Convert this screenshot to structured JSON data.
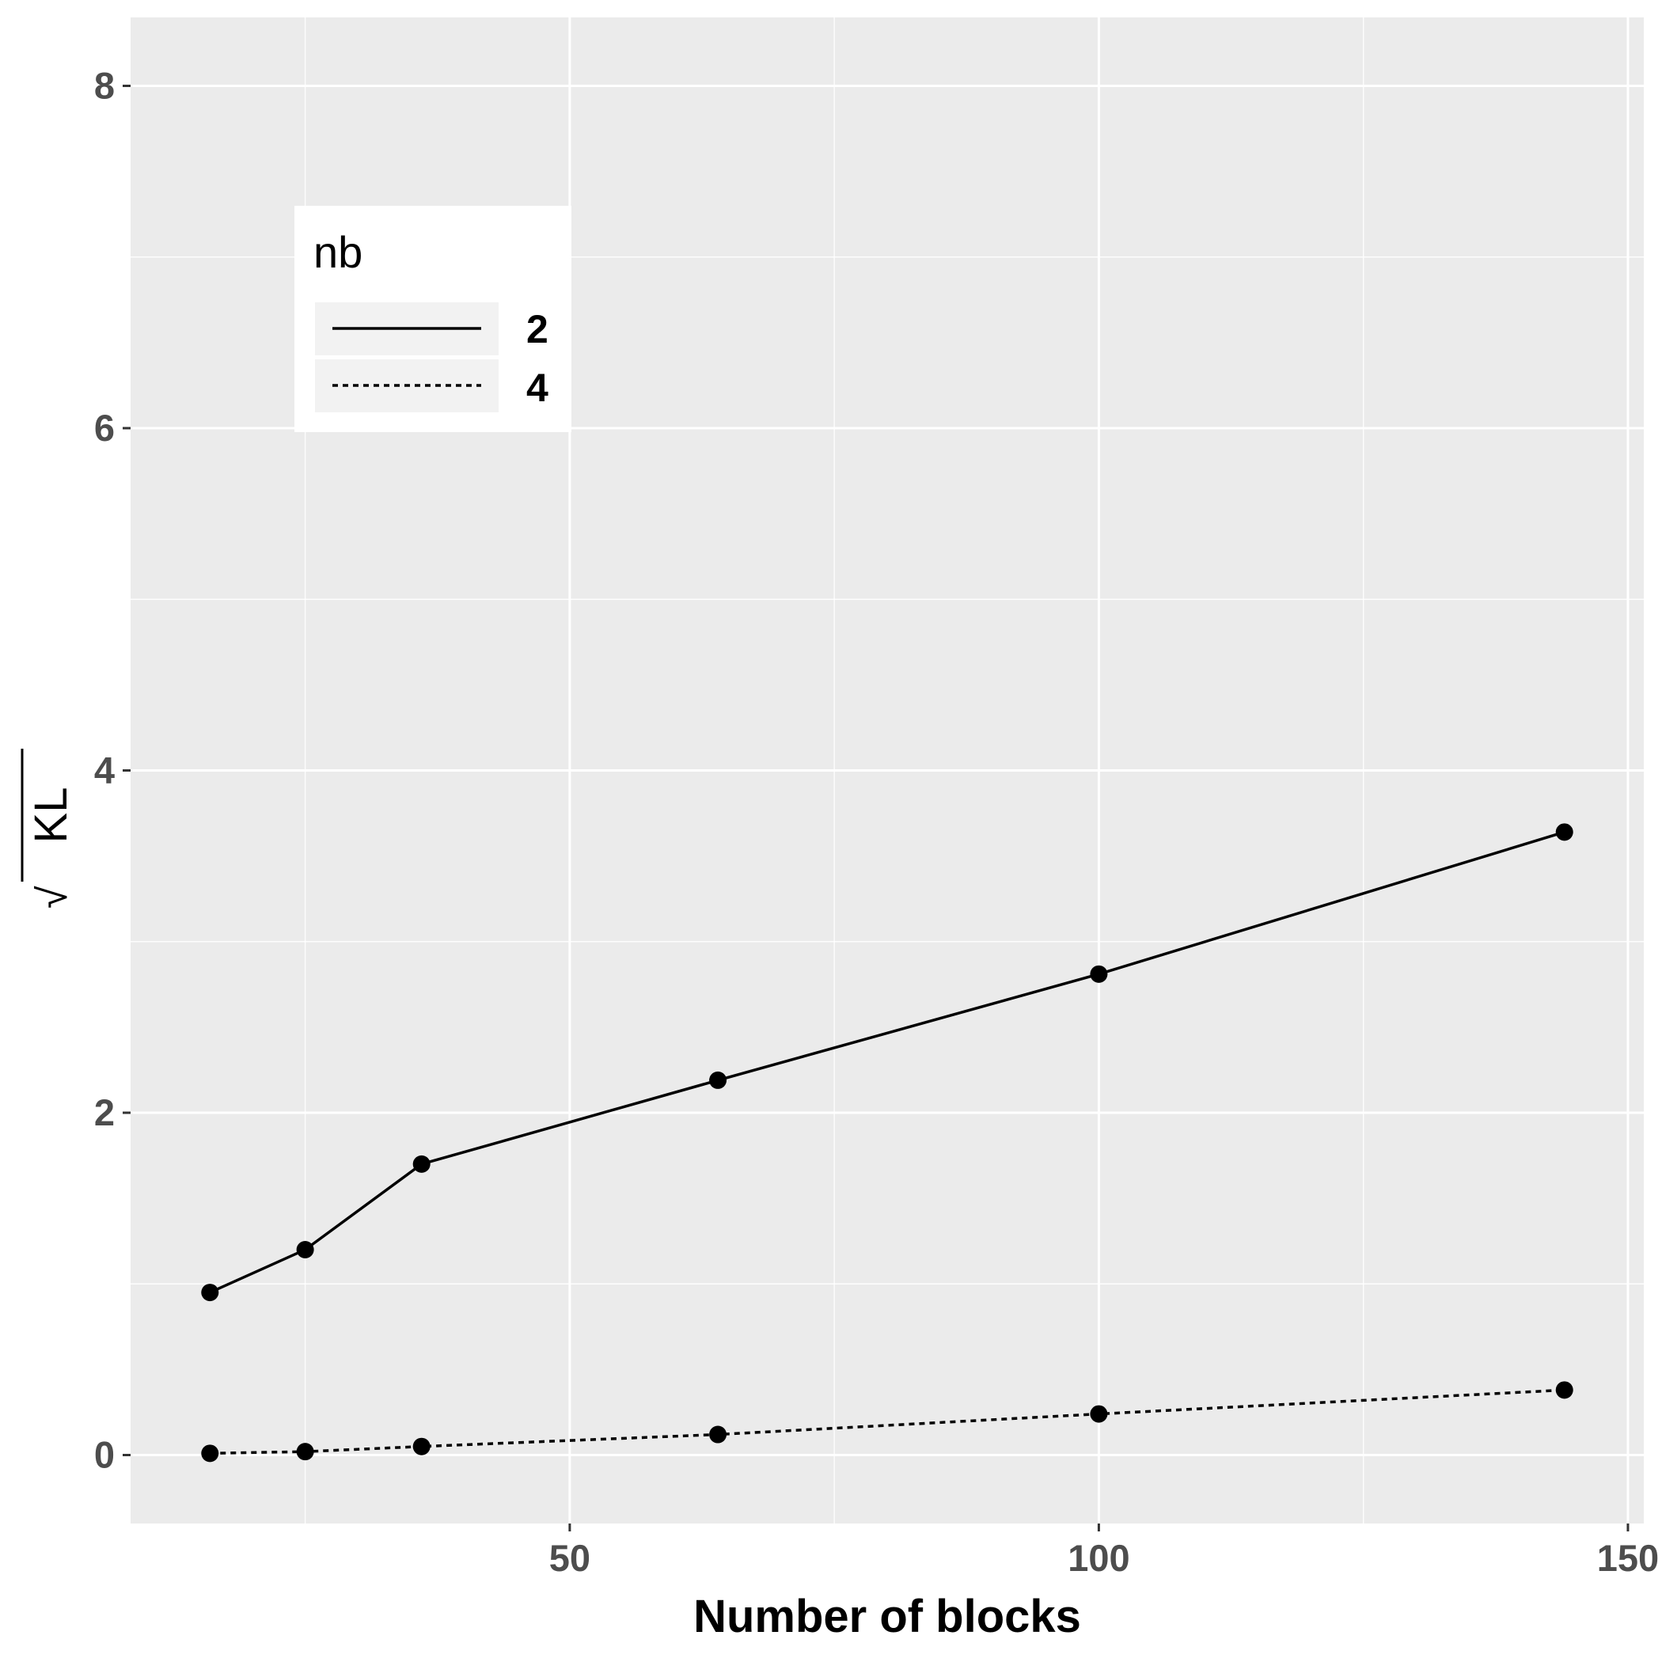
{
  "chart_data": {
    "type": "line",
    "xlabel": "Number of blocks",
    "ylabel_radicand": "KL",
    "ylabel_radical": "√",
    "xlim": [
      8.5,
      151.5
    ],
    "ylim": [
      -0.4,
      8.4
    ],
    "x_ticks": [
      50,
      100,
      150
    ],
    "x_tick_labels": [
      "50",
      "100",
      "150"
    ],
    "x_minor_ticks": [
      25,
      75,
      125
    ],
    "y_ticks": [
      0,
      2,
      4,
      6,
      8
    ],
    "y_tick_labels": [
      "0",
      "2",
      "4",
      "6",
      "8"
    ],
    "y_minor_ticks": [
      1,
      3,
      5,
      7
    ],
    "grid": true,
    "legend": {
      "title": "nb",
      "position": "top-left",
      "entries": [
        {
          "label": "2",
          "linetype": "solid"
        },
        {
          "label": "4",
          "linetype": "dotted"
        }
      ]
    },
    "series": [
      {
        "name": "2",
        "linetype": "solid",
        "x": [
          16,
          25,
          36,
          64,
          100,
          144
        ],
        "y": [
          0.95,
          1.2,
          1.7,
          2.19,
          2.81,
          3.64
        ]
      },
      {
        "name": "4",
        "linetype": "dotted",
        "x": [
          16,
          25,
          36,
          64,
          100,
          144
        ],
        "y": [
          0.01,
          0.02,
          0.05,
          0.12,
          0.24,
          0.38
        ]
      }
    ],
    "colors": {
      "panel": "#ebebeb",
      "grid": "#ffffff",
      "line": "#000000",
      "tick_text": "#4d4d4d"
    }
  }
}
